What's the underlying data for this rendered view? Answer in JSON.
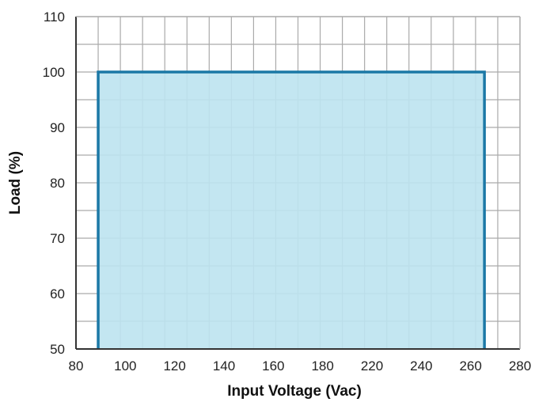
{
  "chart_data": {
    "type": "area",
    "title": "",
    "xlabel": "Input Voltage (Vac)",
    "ylabel": "Load (%)",
    "xlim": [
      80,
      280
    ],
    "ylim": [
      50,
      110
    ],
    "x_ticks": [
      "80",
      "100",
      "120",
      "140",
      "160",
      "180",
      "220",
      "240",
      "260",
      "280"
    ],
    "y_ticks": [
      "50",
      "60",
      "70",
      "80",
      "90",
      "100",
      "110"
    ],
    "x_minor_step": 10,
    "y_minor_step": 5,
    "grid": true,
    "legend": "none",
    "series": [
      {
        "x": [
          90,
          90,
          264,
          264
        ],
        "y": [
          50,
          100,
          100,
          50
        ]
      }
    ],
    "colors": {
      "fill": "#bde3ef",
      "line": "#1b78a6",
      "grid": "#aaaaaa",
      "axis": "#333333"
    }
  }
}
